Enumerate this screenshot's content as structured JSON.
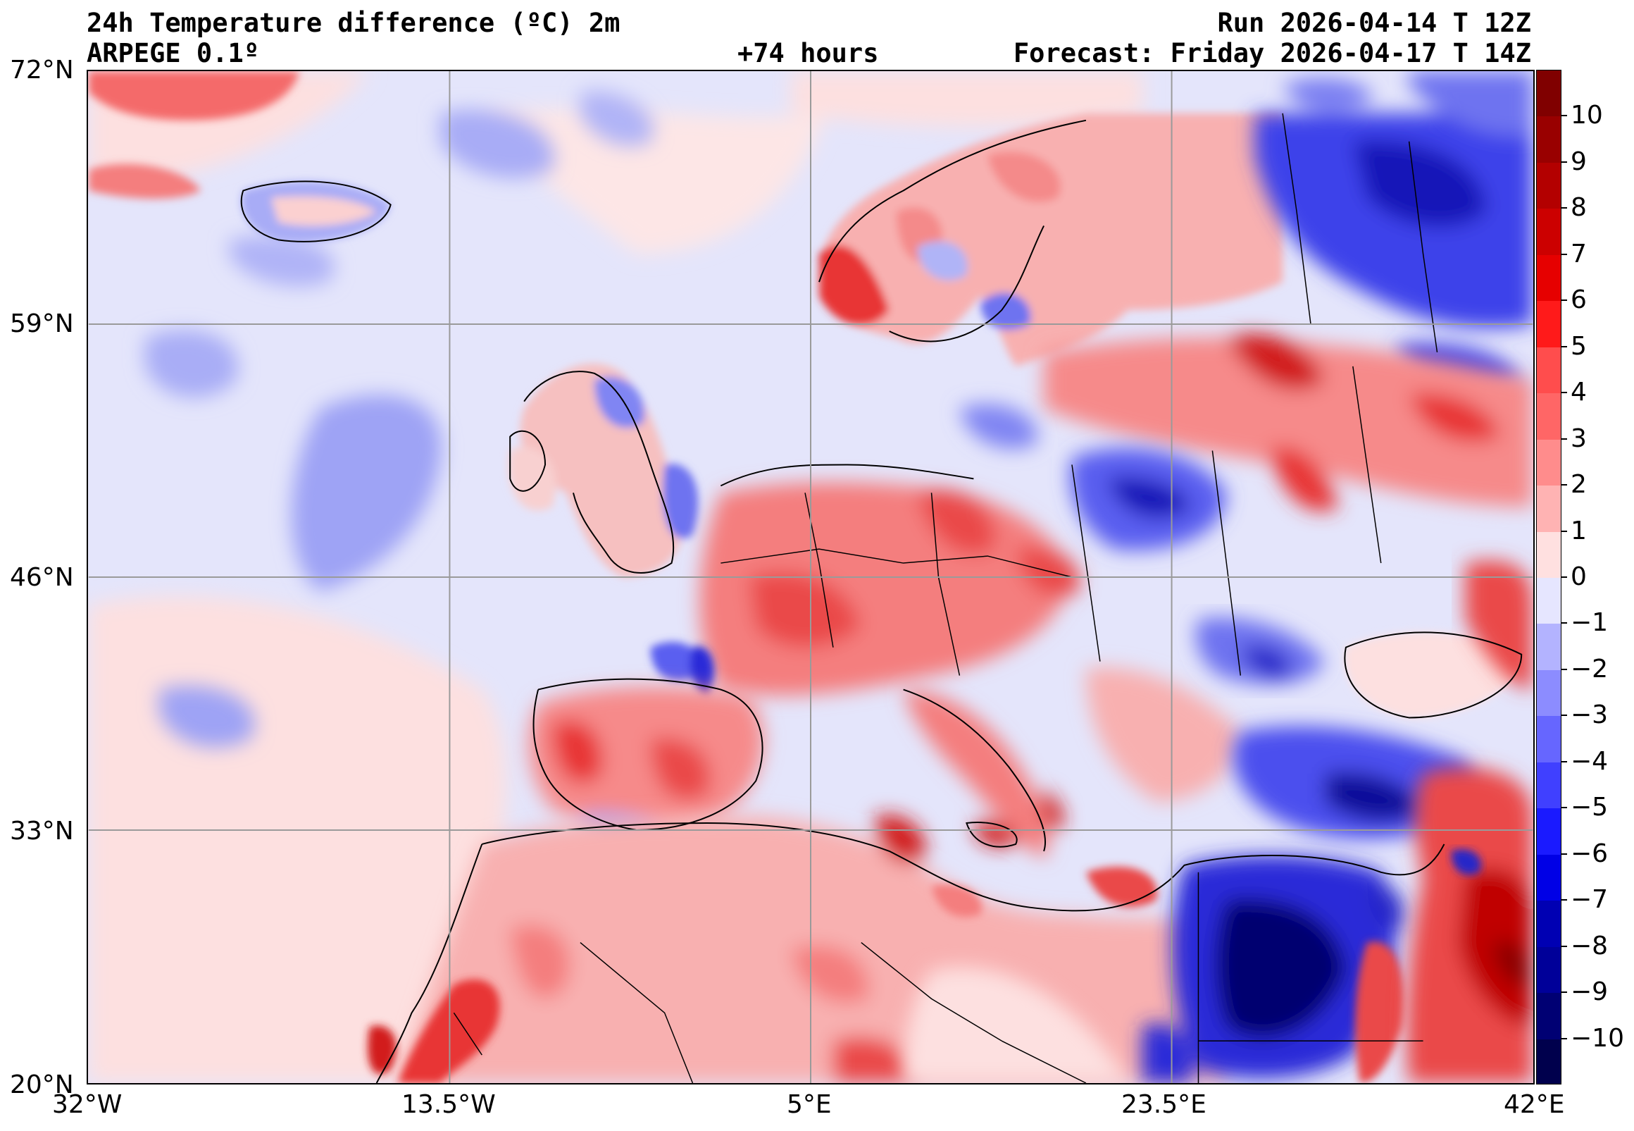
{
  "header": {
    "title_left": "24h Temperature difference (ºC) 2m",
    "model": "ARPEGE 0.1º",
    "lead_time": "+74 hours",
    "run": "Run 2026-04-14 T 12Z",
    "forecast": "Forecast: Friday 2026-04-17 T 14Z"
  },
  "map": {
    "lon_range": [
      -32,
      42
    ],
    "lat_range": [
      20,
      72
    ],
    "lat_labels": [
      "72°N",
      "59°N",
      "46°N",
      "33°N",
      "20°N"
    ],
    "lon_labels": [
      "32°W",
      "13.5°W",
      "5°E",
      "23.5°E",
      "42°E"
    ],
    "gridlines": true,
    "colors": {
      "neg_strong": "#000066",
      "neg_mid": "#2b2bf0",
      "neg_light": "#a8acf8",
      "neutral_cool": "#e6e6fb",
      "neutral_warm": "#fde2e2",
      "pos_light": "#f9aaaa",
      "pos_mid": "#f05050",
      "pos_strong": "#c00000"
    }
  },
  "colorbar": {
    "ticks": [
      "10",
      "9",
      "8",
      "7",
      "6",
      "5",
      "4",
      "3",
      "2",
      "1",
      "0",
      "−1",
      "−2",
      "−3",
      "−4",
      "−5",
      "−6",
      "−7",
      "−8",
      "−9",
      "−10"
    ],
    "colors": [
      "#800000",
      "#990000",
      "#b30000",
      "#cc0000",
      "#e60000",
      "#ff1a1a",
      "#ff4d4d",
      "#ff6666",
      "#ff8c8c",
      "#ffb3b3",
      "#ffe0e0",
      "#e6e6ff",
      "#b3b3ff",
      "#8c8cff",
      "#6666ff",
      "#4040ff",
      "#1a1aff",
      "#0000e6",
      "#0000b3",
      "#000099",
      "#000073",
      "#00004d"
    ]
  }
}
